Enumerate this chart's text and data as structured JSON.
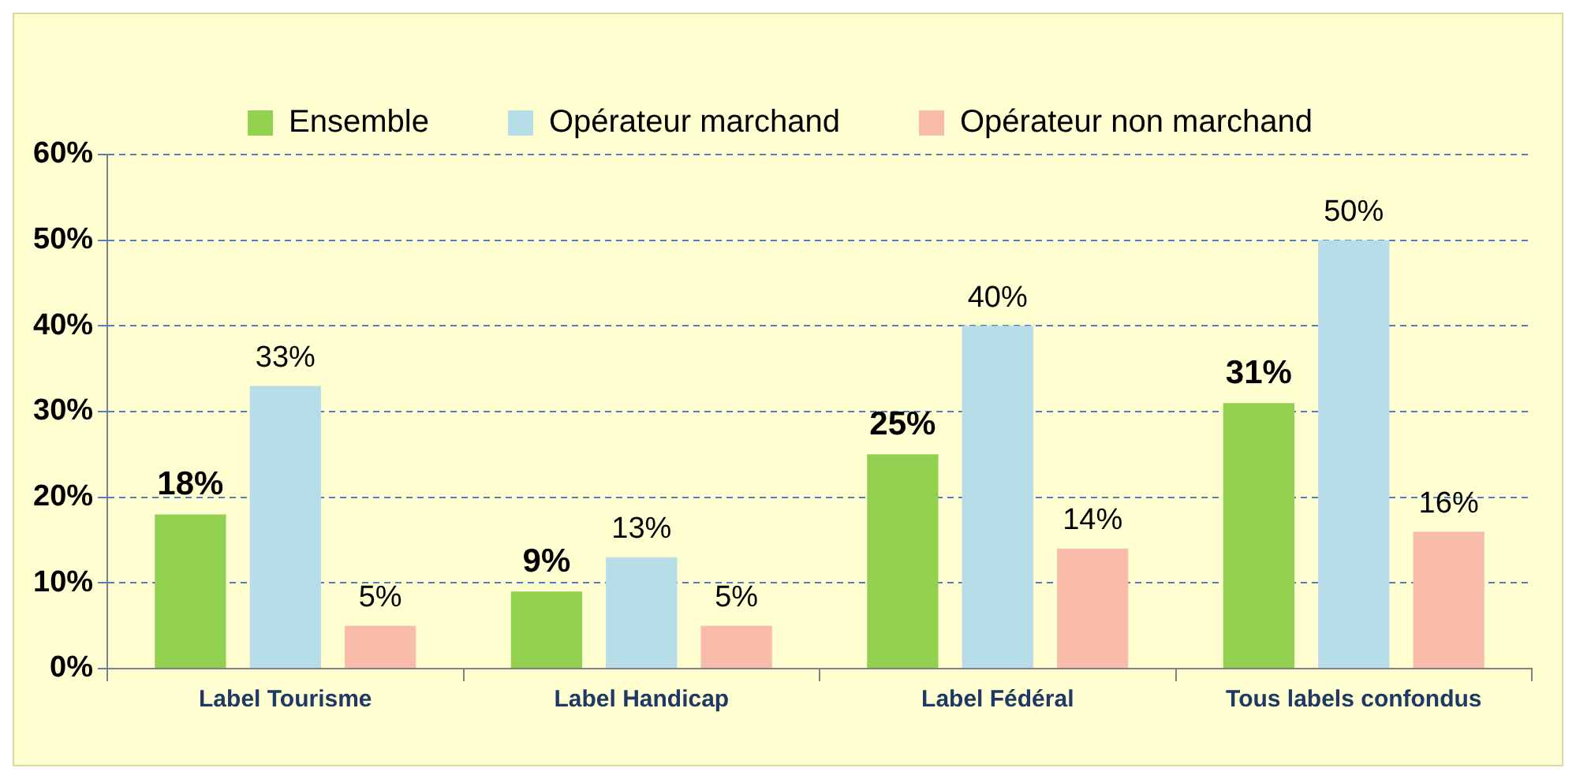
{
  "chart_data": {
    "type": "bar",
    "categories": [
      "Label Tourisme",
      "Label Handicap",
      "Label Fédéral",
      "Tous labels confondus"
    ],
    "series": [
      {
        "name": "Ensemble",
        "color": "#92d050",
        "values": [
          18,
          9,
          25,
          31
        ],
        "value_labels": [
          "18%",
          "9%",
          "25%",
          "31%"
        ]
      },
      {
        "name": "Opérateur marchand",
        "color": "#b7dde8",
        "values": [
          33,
          13,
          40,
          50
        ],
        "value_labels": [
          "33%",
          "13%",
          "40%",
          "50%"
        ]
      },
      {
        "name": "Opérateur non marchand",
        "color": "#f9bcaa",
        "values": [
          5,
          5,
          14,
          16
        ],
        "value_labels": [
          "5%",
          "5%",
          "14%",
          "16%"
        ]
      }
    ],
    "ylim": [
      0,
      60
    ],
    "yticks": [
      {
        "value": 0,
        "label": "0%"
      },
      {
        "value": 10,
        "label": "10%"
      },
      {
        "value": 20,
        "label": "20%"
      },
      {
        "value": 30,
        "label": "30%"
      },
      {
        "value": 40,
        "label": "40%"
      },
      {
        "value": 50,
        "label": "50%"
      },
      {
        "value": 60,
        "label": "60%"
      }
    ],
    "grid": "y",
    "legend": "top"
  }
}
